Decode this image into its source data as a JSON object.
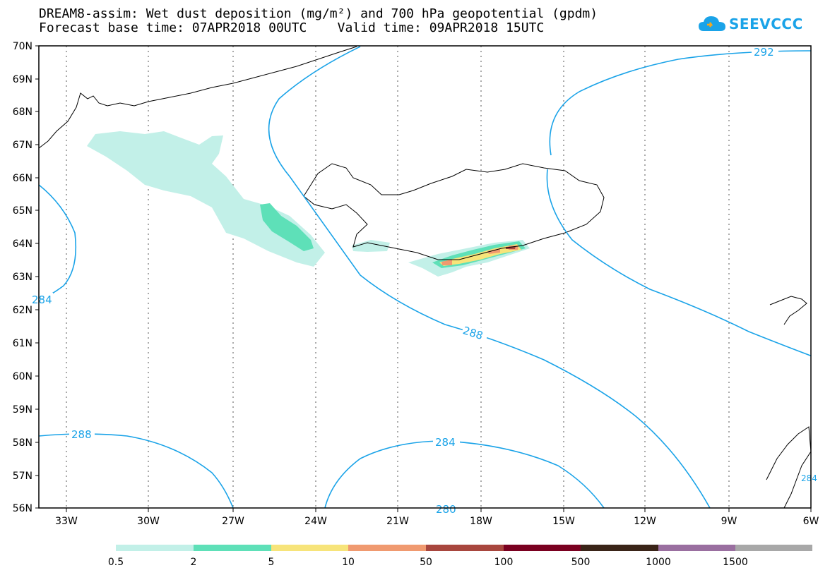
{
  "header": {
    "title": "DREAM8-assim: Wet dust deposition (mg/m²) and 700 hPa geopotential (gpdm)",
    "base_time": "Forecast base time: 07APR2018 00UTC",
    "valid_time": "Valid time: 09APR2018 15UTC"
  },
  "logo": {
    "text": "SEEVCCC",
    "icon": "cloud-logo-icon"
  },
  "map": {
    "lat_labels": [
      "70N",
      "69N",
      "68N",
      "67N",
      "66N",
      "65N",
      "64N",
      "63N",
      "62N",
      "61N",
      "60N",
      "59N",
      "58N",
      "57N",
      "56N"
    ],
    "lon_labels": [
      "33W",
      "30W",
      "27W",
      "24W",
      "21W",
      "18W",
      "15W",
      "12W",
      "9W",
      "6W"
    ],
    "lat_range": [
      56,
      70
    ],
    "lon_range": [
      -34.4,
      -6
    ],
    "grid": "dotted",
    "contour_color": "#1aa3e8",
    "contour_labels": [
      "292",
      "288",
      "288",
      "284",
      "280",
      "284",
      "284"
    ]
  },
  "legend": {
    "labels": [
      "0.5",
      "2",
      "5",
      "10",
      "50",
      "100",
      "500",
      "1000",
      "1500"
    ],
    "colors": [
      "#c2f0e8",
      "#5ee0b8",
      "#f7e47a",
      "#f09a70",
      "#a8463e",
      "#7a0020",
      "#3a2418",
      "#9a6fa0",
      "#a8a8a8"
    ]
  }
}
